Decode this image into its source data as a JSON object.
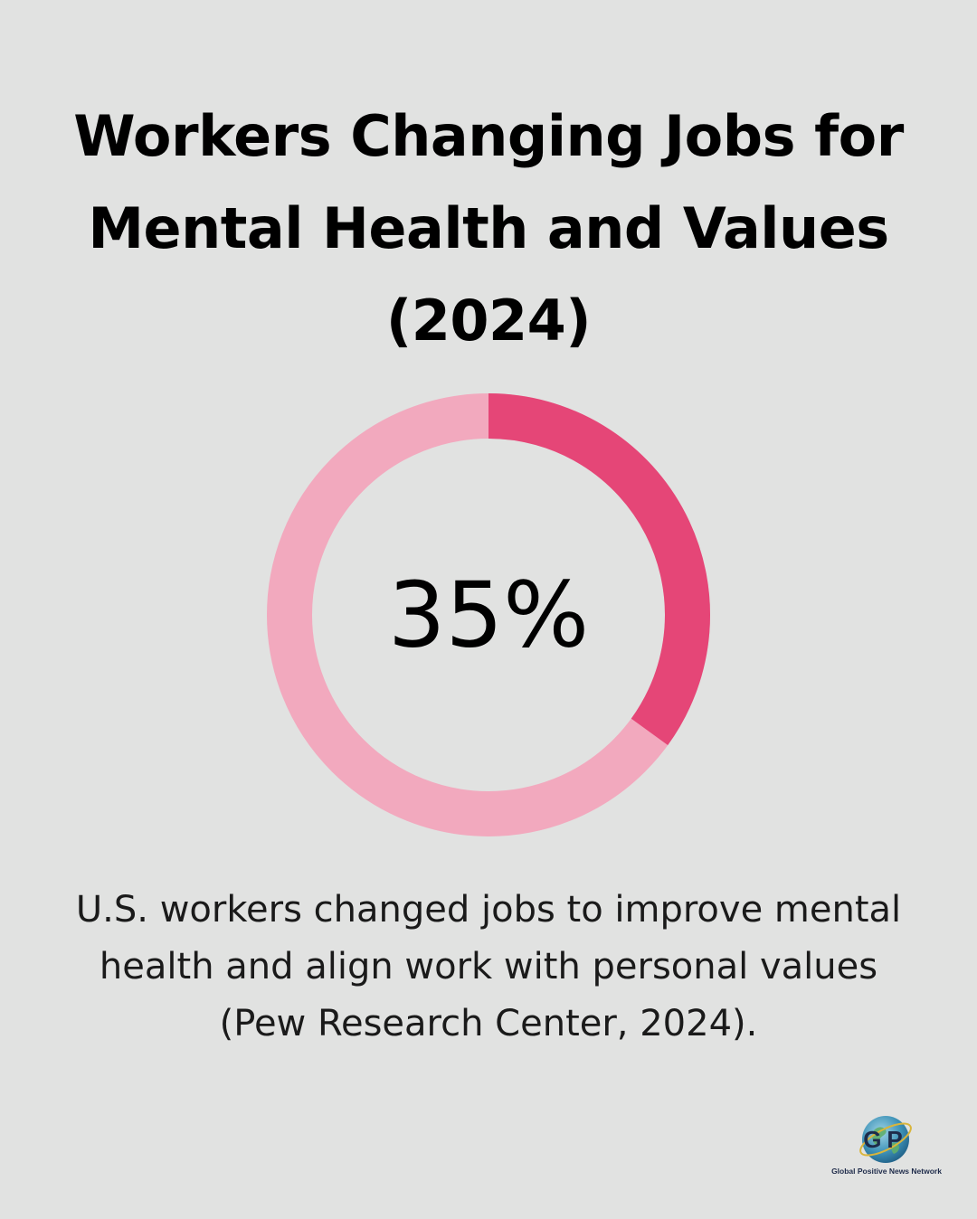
{
  "title_lines": [
    "Workers Changing Jobs for",
    "Mental Health and Values",
    "(2024)"
  ],
  "chart_data": {
    "type": "pie",
    "values": [
      35,
      65
    ],
    "value_label": "35%",
    "colors": {
      "highlight": "#e54677",
      "remainder": "#f2a9be"
    }
  },
  "caption_lines": [
    "U.S. workers changed jobs to improve mental",
    "health and align work with personal values",
    "(Pew Research Center, 2024)."
  ],
  "logo": {
    "mark_text": "GP",
    "name": "Global Positive News Network",
    "icon": "globe-icon"
  }
}
